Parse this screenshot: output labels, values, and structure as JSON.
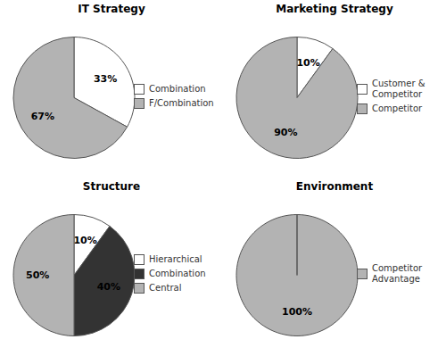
{
  "chart_data": [
    {
      "type": "pie",
      "title": "IT Strategy",
      "categories": [
        "Combination",
        "F/Combination"
      ],
      "values": [
        33,
        67
      ],
      "value_labels": [
        "33%",
        "67%"
      ],
      "colors": [
        "#ffffff",
        "#b3b3b3"
      ],
      "data_labels": true,
      "legend": "right"
    },
    {
      "type": "pie",
      "title": "Marketing Strategy",
      "categories": [
        "Customer &\nCompetitor",
        "Competitor"
      ],
      "values": [
        10,
        90
      ],
      "value_labels": [
        "10%",
        "90%"
      ],
      "colors": [
        "#ffffff",
        "#b3b3b3"
      ],
      "data_labels": true,
      "legend": "right"
    },
    {
      "type": "pie",
      "title": "Structure",
      "categories": [
        "Hierarchical",
        "Combination",
        "Central"
      ],
      "values": [
        10,
        40,
        50
      ],
      "value_labels": [
        "10%",
        "40%",
        "50%"
      ],
      "colors": [
        "#ffffff",
        "#333333",
        "#b3b3b3"
      ],
      "data_labels": true,
      "legend": "right"
    },
    {
      "type": "pie",
      "title": "Environment",
      "categories": [
        "Competitor\nAdvantage"
      ],
      "values": [
        100
      ],
      "value_labels": [
        "100%"
      ],
      "colors": [
        "#b3b3b3"
      ],
      "data_labels": true,
      "legend": "right"
    }
  ]
}
